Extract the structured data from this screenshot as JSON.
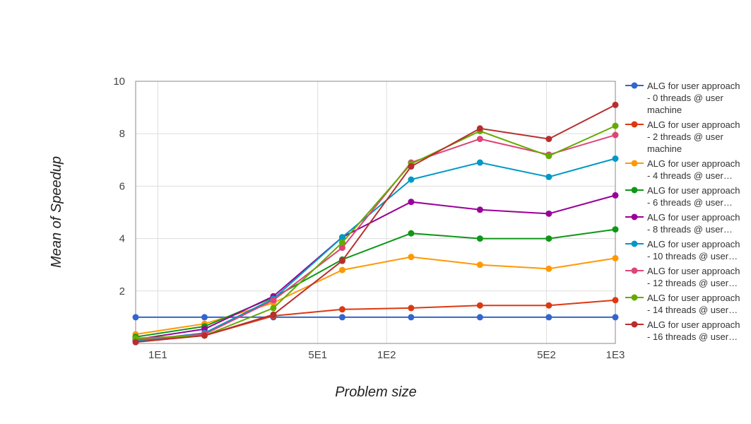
{
  "chart_data": {
    "type": "line",
    "xlabel": "Problem size",
    "ylabel": "Mean of Speedup",
    "x_scale": "log",
    "xlim": [
      8,
      1000
    ],
    "ylim": [
      0,
      10
    ],
    "x_ticks": [
      {
        "value": 10,
        "label": "1E1"
      },
      {
        "value": 50,
        "label": "5E1"
      },
      {
        "value": 100,
        "label": "1E2"
      },
      {
        "value": 500,
        "label": "5E2"
      },
      {
        "value": 1000,
        "label": "1E3"
      }
    ],
    "y_ticks": [
      {
        "value": 2,
        "label": "2"
      },
      {
        "value": 4,
        "label": "4"
      },
      {
        "value": 6,
        "label": "6"
      },
      {
        "value": 8,
        "label": "8"
      },
      {
        "value": 10,
        "label": "10"
      }
    ],
    "grid": true,
    "legend_position": "right",
    "x": [
      8,
      16,
      32,
      64,
      128,
      256,
      512,
      1000
    ],
    "series": [
      {
        "name": "ALG for user approach - 0 threads @ user machine",
        "legend_lines": [
          "ALG for user approach",
          "- 0 threads @ user",
          "machine"
        ],
        "color": "#3366cc",
        "values": [
          1.0,
          1.0,
          1.0,
          1.0,
          1.0,
          1.0,
          1.0,
          1.0
        ]
      },
      {
        "name": "ALG for user approach - 2 threads @ user machine",
        "legend_lines": [
          "ALG for user approach",
          "- 2 threads @ user",
          "machine"
        ],
        "color": "#dc3912",
        "values": [
          0.1,
          0.3,
          1.05,
          1.3,
          1.35,
          1.45,
          1.45,
          1.65
        ]
      },
      {
        "name": "ALG for user approach - 4 threads @ user…",
        "legend_lines": [
          "ALG for user approach",
          "- 4 threads @ user…"
        ],
        "color": "#ff9900",
        "values": [
          0.35,
          0.75,
          1.55,
          2.8,
          3.3,
          3.0,
          2.85,
          3.25
        ]
      },
      {
        "name": "ALG for user approach - 6 threads @ user…",
        "legend_lines": [
          "ALG for user approach",
          "- 6 threads @ user…"
        ],
        "color": "#109618",
        "values": [
          0.25,
          0.65,
          1.75,
          3.2,
          4.2,
          4.0,
          4.0,
          4.35
        ]
      },
      {
        "name": "ALG for user approach - 8 threads @ user…",
        "legend_lines": [
          "ALG for user approach",
          "- 8 threads @ user…"
        ],
        "color": "#990099",
        "values": [
          0.15,
          0.55,
          1.8,
          4.05,
          5.4,
          5.1,
          4.95,
          5.65
        ]
      },
      {
        "name": "ALG for user approach - 10 threads @ user…",
        "legend_lines": [
          "ALG for user approach",
          "- 10 threads @ user…"
        ],
        "color": "#0099c6",
        "values": [
          0.1,
          0.4,
          1.7,
          4.05,
          6.25,
          6.9,
          6.35,
          7.05
        ]
      },
      {
        "name": "ALG for user approach - 12 threads @ user…",
        "legend_lines": [
          "ALG for user approach",
          "- 12 threads @ user…"
        ],
        "color": "#dd4477",
        "values": [
          0.15,
          0.35,
          1.65,
          3.65,
          6.9,
          7.8,
          7.2,
          7.95
        ]
      },
      {
        "name": "ALG for user approach - 14 threads @ user…",
        "legend_lines": [
          "ALG for user approach",
          "- 14 threads @ user…"
        ],
        "color": "#66aa00",
        "values": [
          0.2,
          0.3,
          1.35,
          3.85,
          6.85,
          8.1,
          7.15,
          8.3
        ]
      },
      {
        "name": "ALG for user approach - 16 threads @ user…",
        "legend_lines": [
          "ALG for user approach",
          "- 16 threads @ user…"
        ],
        "color": "#b82e2e",
        "values": [
          0.05,
          0.3,
          1.1,
          3.15,
          6.75,
          8.2,
          7.8,
          9.1
        ]
      }
    ]
  }
}
